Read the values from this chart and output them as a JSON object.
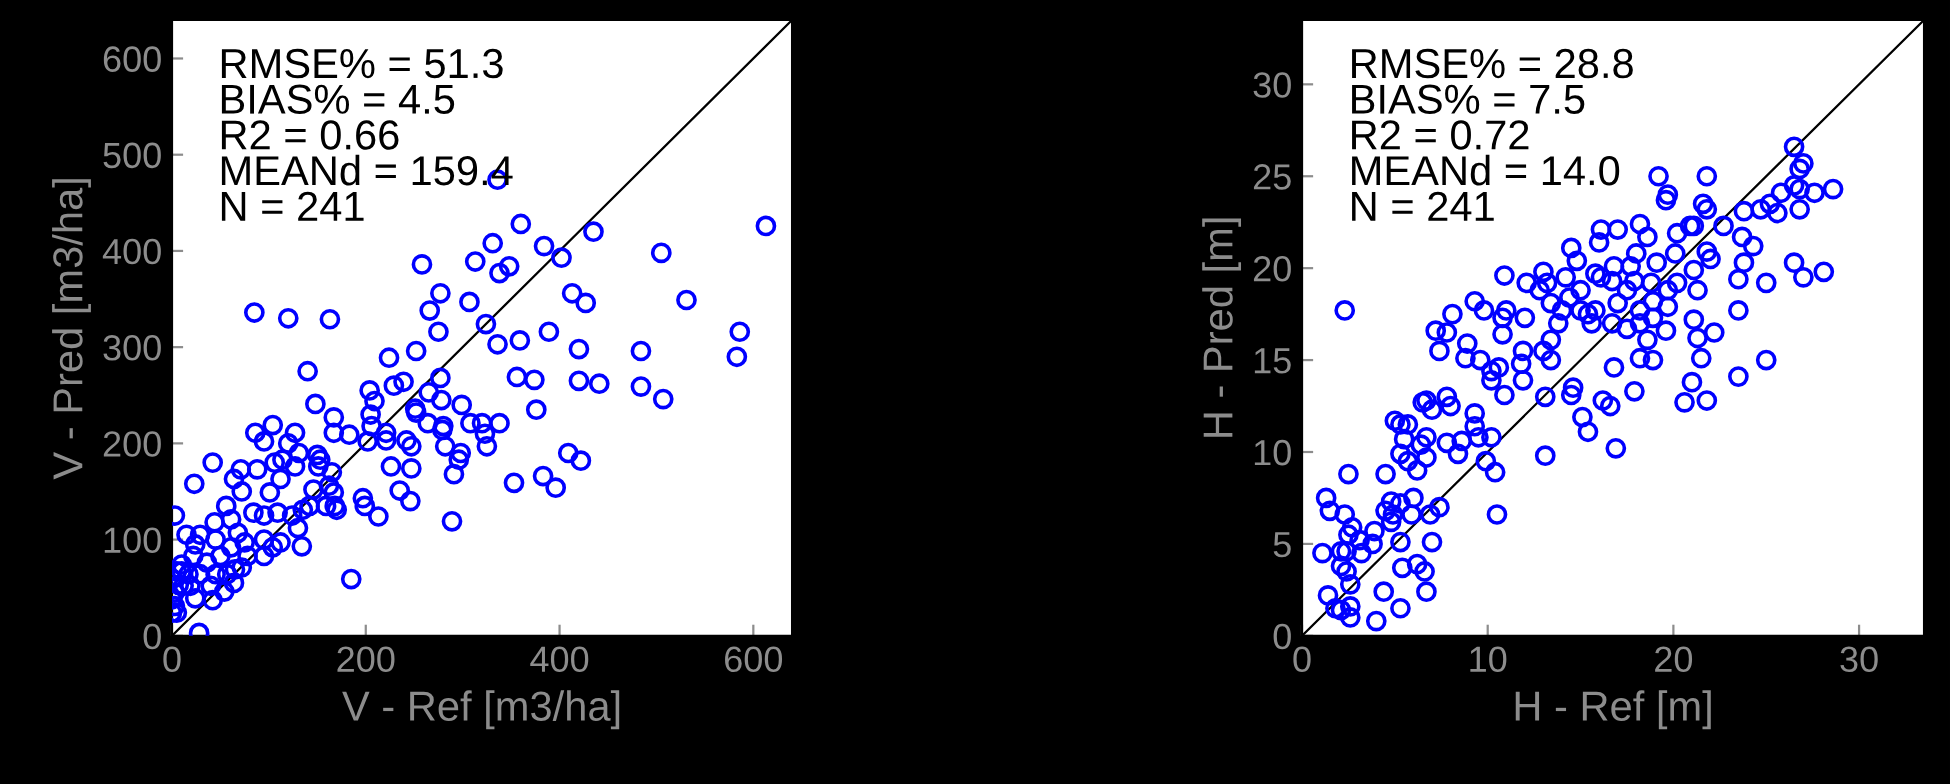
{
  "chart_data": [
    {
      "type": "scatter",
      "xlabel": "V - Ref [m3/ha]",
      "ylabel": "V - Pred [m3/ha]",
      "xlim": [
        0,
        640
      ],
      "ylim": [
        0,
        640
      ],
      "xticks": [
        0,
        200,
        400,
        600
      ],
      "yticks": [
        0,
        100,
        200,
        300,
        400,
        500,
        600
      ],
      "grid": false,
      "annotations": [
        "RMSE% = 51.3",
        "BIAS% = 4.5",
        "R2 = 0.66",
        "MEANd = 159.4",
        "N = 241"
      ],
      "series": [
        {
          "marker": "circle",
          "color": "#0000ff",
          "x": [
            336,
            360,
            435,
            613,
            331,
            384,
            402,
            505,
            258,
            313,
            348,
            338,
            85,
            120,
            163,
            413,
            427,
            531,
            307,
            277,
            266,
            324,
            275,
            336,
            359,
            389,
            586,
            583,
            420,
            484,
            252,
            224,
            140,
            148,
            204,
            209,
            229,
            239,
            251,
            265,
            277,
            278,
            356,
            374,
            420,
            441,
            484,
            507,
            376,
            299,
            252,
            205,
            206,
            167,
            104,
            86,
            95,
            127,
            131,
            120,
            167,
            183,
            202,
            221,
            242,
            221,
            264,
            280,
            308,
            320,
            338,
            279,
            323,
            325,
            298,
            282,
            247,
            226,
            247,
            235,
            246,
            291,
            296,
            289,
            353,
            383,
            396,
            409,
            422,
            197,
            213,
            199,
            185,
            42,
            23,
            3,
            71,
            64,
            88,
            72,
            106,
            114,
            127,
            150,
            151,
            165,
            167,
            153,
            146,
            112,
            101,
            95,
            84,
            109,
            124,
            130,
            135,
            142,
            159,
            168,
            170,
            162,
            56,
            61,
            44,
            29,
            15,
            24,
            45,
            61,
            68,
            75,
            95,
            104,
            112,
            95,
            134,
            78,
            65,
            72,
            50,
            36,
            22,
            10,
            29,
            17,
            45,
            57,
            40,
            54,
            24,
            42,
            7,
            3,
            0,
            3,
            5,
            12,
            10,
            19,
            28,
            0,
            0,
            5,
            64
          ],
          "values": [
            474,
            428,
            420,
            426,
            408,
            405,
            393,
            398,
            386,
            389,
            384,
            377,
            336,
            330,
            329,
            356,
            346,
            349,
            347,
            356,
            338,
            324,
            316,
            303,
            307,
            316,
            316,
            290,
            298,
            296,
            296,
            289,
            275,
            241,
            255,
            244,
            260,
            264,
            236,
            253,
            268,
            245,
            269,
            266,
            265,
            262,
            259,
            246,
            235,
            240,
            232,
            230,
            218,
            227,
            219,
            211,
            202,
            211,
            190,
            200,
            211,
            209,
            202,
            203,
            203,
            211,
            221,
            218,
            221,
            221,
            221,
            214,
            210,
            197,
            190,
            197,
            197,
            176,
            174,
            151,
            140,
            168,
            183,
            119,
            159,
            166,
            154,
            190,
            182,
            143,
            124,
            135,
            59,
            180,
            158,
            125,
            173,
            163,
            173,
            150,
            180,
            183,
            176,
            188,
            176,
            170,
            149,
            183,
            152,
            163,
            149,
            125,
            128,
            128,
            125,
            112,
            131,
            135,
            135,
            135,
            131,
            156,
            135,
            121,
            118,
            105,
            105,
            95,
            100,
            92,
            107,
            97,
            100,
            92,
            97,
            83,
            93,
            83,
            69,
            71,
            83,
            76,
            83,
            74,
            64,
            64,
            64,
            64,
            52,
            46,
            39,
            37,
            53,
            45,
            38,
            31,
            24,
            52,
            67,
            52,
            3,
            59,
            24,
            67,
            55
          ]
        },
        {
          "type": "line",
          "color": "#000000",
          "x": [
            0,
            640
          ],
          "values": [
            0,
            640
          ]
        }
      ]
    },
    {
      "type": "scatter",
      "xlabel": "H - Ref [m]",
      "ylabel": "H - Pred [m]",
      "xlim": [
        0,
        33.5
      ],
      "ylim": [
        0,
        33.5
      ],
      "xticks": [
        0,
        10,
        20,
        30
      ],
      "yticks": [
        0,
        5,
        10,
        15,
        20,
        25,
        30
      ],
      "grid": false,
      "annotations": [
        "RMSE% = 28.8",
        "BIAS% = 7.5",
        "R2 = 0.72",
        "MEANd = 14.0",
        "N = 241"
      ],
      "series": [
        {
          "marker": "circle",
          "color": "#0000ff",
          "x": [
            26.5,
            27.0,
            26.8,
            28.6,
            27.6,
            26.5,
            26.8,
            25.8,
            25.2,
            24.7,
            25.6,
            26.8,
            28.1,
            27.0,
            26.5,
            25.0,
            25.0,
            23.5,
            23.5,
            23.8,
            24.3,
            23.8,
            23.7,
            23.5,
            22.7,
            21.8,
            21.8,
            21.6,
            21.1,
            21.8,
            22.0,
            21.1,
            21.3,
            22.2,
            21.1,
            21.3,
            21.5,
            21.8,
            21.0,
            20.6,
            20.1,
            20.2,
            20.9,
            20.2,
            19.7,
            19.7,
            19.6,
            19.2,
            19.7,
            19.6,
            19.1,
            18.8,
            18.9,
            18.9,
            18.6,
            18.9,
            18.2,
            18.6,
            18.0,
            17.7,
            17.9,
            17.5,
            18.2,
            18.2,
            17.9,
            18.2,
            17.5,
            17.0,
            16.8,
            16.7,
            17.0,
            16.7,
            16.8,
            16.9,
            16.6,
            16.2,
            16.1,
            16.0,
            16.1,
            15.8,
            15.8,
            15.4,
            15.0,
            15.6,
            15.0,
            15.4,
            15.1,
            14.6,
            14.5,
            14.8,
            14.5,
            14.2,
            14.4,
            14.0,
            13.8,
            13.4,
            13.2,
            13.0,
            12.8,
            12.1,
            12.0,
            11.9,
            11.9,
            11.8,
            13.4,
            13.4,
            13.0,
            13.1,
            13.1,
            10.9,
            11.0,
            10.8,
            10.8,
            10.9,
            10.6,
            10.2,
            10.2,
            9.6,
            9.3,
            9.8,
            8.9,
            8.8,
            9.3,
            9.3,
            9.5,
            10.2,
            9.9,
            10.4,
            10.5,
            8.1,
            7.8,
            7.2,
            7.4,
            7.8,
            8.0,
            7.8,
            8.4,
            8.6,
            6.7,
            6.5,
            7.0,
            6.7,
            6.4,
            6.7,
            6.2,
            5.7,
            5.3,
            5.0,
            5.5,
            5.3,
            5.7,
            4.5,
            2.5,
            2.3,
            4.8,
            6.0,
            5.3,
            5.9,
            7.4,
            6.9,
            4.9,
            4.5,
            4.8,
            7.0,
            5.3,
            5.4,
            6.2,
            6.6,
            6.7,
            5.3,
            4.4,
            4.0,
            3.9,
            3.8,
            3.2,
            3.1,
            2.5,
            2.7,
            2.3,
            1.5,
            1.3,
            1.1,
            2.1,
            2.4,
            2.1,
            2.4,
            2.6,
            1.4,
            1.8,
            2.6,
            2.6,
            2.1
          ],
          "values": [
            26.6,
            25.7,
            25.4,
            24.3,
            24.1,
            24.5,
            24.3,
            24.1,
            23.5,
            23.2,
            23.0,
            23.2,
            19.8,
            19.5,
            20.3,
            19.2,
            15.0,
            14.1,
            17.7,
            20.3,
            21.2,
            23.1,
            21.7,
            19.4,
            22.3,
            25.0,
            23.2,
            23.5,
            22.3,
            20.9,
            20.5,
            19.9,
            18.8,
            16.5,
            17.2,
            16.2,
            15.1,
            12.8,
            13.8,
            12.7,
            20.8,
            21.9,
            22.3,
            19.2,
            18.8,
            17.9,
            16.6,
            25.0,
            24.0,
            23.7,
            20.3,
            19.2,
            18.2,
            17.3,
            16.1,
            15.0,
            22.4,
            21.7,
            20.8,
            20.1,
            19.3,
            18.8,
            17.7,
            17.0,
            13.3,
            15.1,
            16.7,
            22.1,
            20.1,
            19.3,
            18.1,
            17.0,
            14.6,
            10.2,
            12.5,
            12.8,
            22.1,
            21.4,
            19.5,
            19.7,
            17.7,
            17.5,
            17.7,
            17.0,
            18.8,
            11.1,
            11.9,
            13.5,
            13.1,
            20.4,
            21.1,
            19.5,
            18.4,
            17.7,
            17.0,
            18.1,
            19.2,
            19.8,
            18.8,
            19.2,
            17.3,
            15.5,
            13.9,
            14.8,
            16.1,
            15.0,
            15.5,
            13.0,
            9.8,
            19.6,
            17.7,
            17.3,
            16.4,
            13.1,
            14.6,
            13.9,
            14.4,
            15.0,
            18.2,
            17.7,
            15.9,
            15.1,
            12.1,
            11.4,
            10.8,
            10.8,
            9.5,
            8.9,
            6.6,
            17.5,
            16.5,
            16.6,
            15.5,
            13.0,
            12.5,
            10.5,
            9.9,
            10.6,
            12.8,
            12.7,
            12.3,
            10.8,
            10.4,
            9.7,
            9.0,
            11.5,
            11.5,
            11.7,
            10.7,
            9.9,
            9.5,
            8.8,
            8.8,
            17.7,
            7.3,
            7.5,
            7.2,
            6.6,
            7.0,
            6.6,
            6.6,
            6.8,
            6.2,
            5.1,
            5.1,
            3.7,
            3.9,
            3.5,
            2.4,
            1.5,
            2.4,
            0.8,
            5.7,
            5.0,
            4.5,
            5.2,
            5.5,
            5.9,
            6.6,
            6.8,
            7.5,
            4.5,
            4.6,
            4.6,
            3.8,
            3.5,
            2.8,
            2.2,
            1.5,
            1.6,
            1.0,
            1.4
          ]
        },
        {
          "type": "line",
          "color": "#000000",
          "x": [
            0,
            33.5
          ],
          "values": [
            0,
            33.5
          ]
        }
      ]
    }
  ]
}
